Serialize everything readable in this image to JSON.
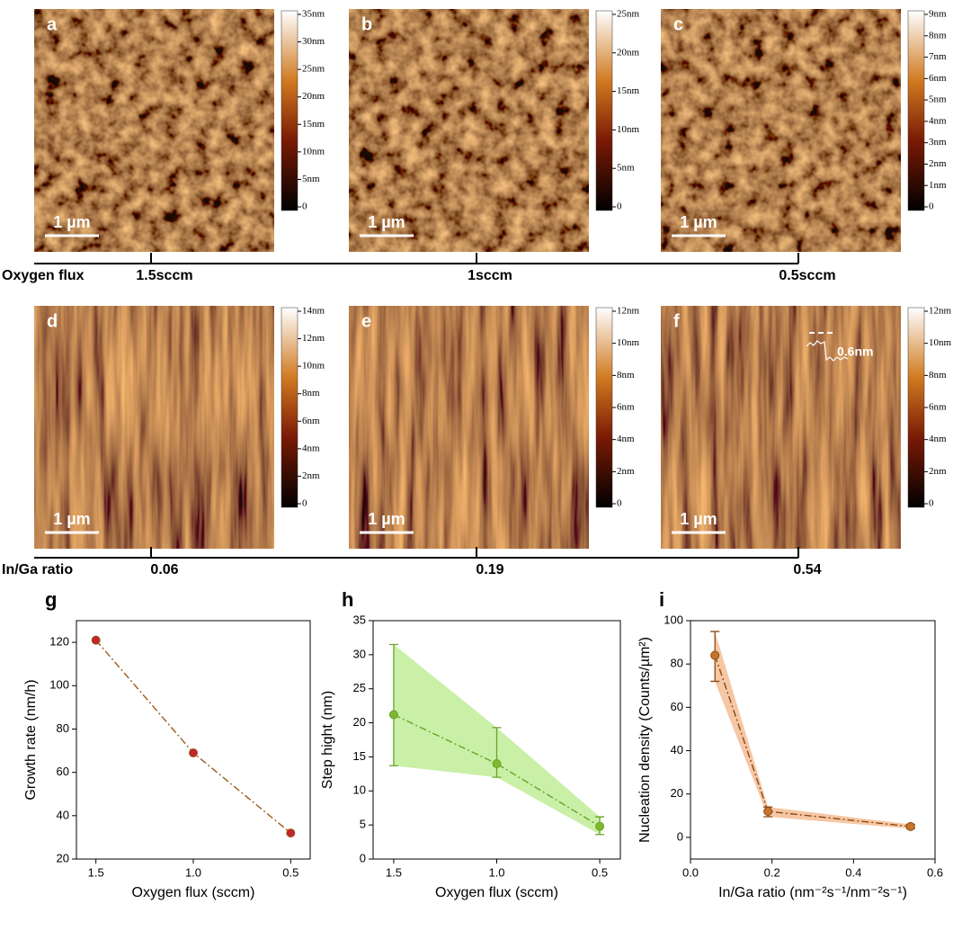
{
  "panels": [
    {
      "label": "a",
      "scale_bar": "1 µm",
      "colorbar": [
        "35nm",
        "30nm",
        "25nm",
        "20nm",
        "15nm",
        "10nm",
        "5nm",
        "0"
      ]
    },
    {
      "label": "b",
      "scale_bar": "1 µm",
      "colorbar": [
        "25nm",
        "20nm",
        "15nm",
        "10nm",
        "5nm",
        "0"
      ]
    },
    {
      "label": "c",
      "scale_bar": "1 µm",
      "colorbar": [
        "9nm",
        "8nm",
        "7nm",
        "6nm",
        "5nm",
        "4nm",
        "3nm",
        "2nm",
        "1nm",
        "0"
      ]
    },
    {
      "label": "d",
      "scale_bar": "1 µm",
      "colorbar": [
        "14nm",
        "12nm",
        "10nm",
        "8nm",
        "6nm",
        "4nm",
        "2nm",
        "0"
      ]
    },
    {
      "label": "e",
      "scale_bar": "1 µm",
      "colorbar": [
        "12nm",
        "10nm",
        "8nm",
        "6nm",
        "4nm",
        "2nm",
        "0"
      ]
    },
    {
      "label": "f",
      "scale_bar": "1 µm",
      "colorbar": [
        "12nm",
        "10nm",
        "8nm",
        "6nm",
        "4nm",
        "2nm",
        "0"
      ],
      "annotation": "0.6nm"
    }
  ],
  "axis_rows": [
    {
      "title": "Oxygen flux",
      "ticks": [
        "1.5sccm",
        "1sccm",
        "0.5sccm"
      ]
    },
    {
      "title": "In/Ga ratio",
      "ticks": [
        "0.06",
        "0.19",
        "0.54"
      ]
    }
  ],
  "chart_data": [
    {
      "type": "line",
      "panel": "g",
      "x": [
        1.5,
        1.0,
        0.5
      ],
      "values": [
        121,
        69,
        32
      ],
      "color": "#9b5a1a",
      "marker_color": "#c0262b",
      "line_style": "dashdot",
      "xlim": [
        1.6,
        0.4
      ],
      "xticks": [
        1.5,
        {
          "value": 1.0,
          "label": "1.0"
        },
        0.5
      ],
      "ylim": [
        20,
        130
      ],
      "yticks": [
        20,
        40,
        60,
        80,
        100,
        120
      ],
      "xlabel": "Oxygen flux (sccm)",
      "ylabel": "Growth rate (nm/h)"
    },
    {
      "type": "line",
      "panel": "h",
      "x": [
        1.5,
        1.0,
        0.5
      ],
      "values": [
        21.2,
        14,
        4.8
      ],
      "lower": [
        13.7,
        12,
        3.6
      ],
      "upper": [
        31.5,
        19.3,
        6.2
      ],
      "color": "#6aa22a",
      "marker_color": "#7fb82e",
      "band_color": "#c9f0a6",
      "line_style": "dashdot",
      "xlim": [
        1.6,
        0.4
      ],
      "xticks": [
        1.5,
        {
          "value": 1.0,
          "label": "1.0"
        },
        0.5
      ],
      "ylim": [
        0,
        35
      ],
      "yticks": [
        0,
        5,
        10,
        15,
        20,
        25,
        30,
        35
      ],
      "xlabel": "Oxygen flux (sccm)",
      "ylabel": "Step hight (nm)"
    },
    {
      "type": "line",
      "panel": "i",
      "x": [
        0.06,
        0.19,
        0.54
      ],
      "values": [
        84,
        12,
        5
      ],
      "lower": [
        72,
        9.5,
        4
      ],
      "upper": [
        95,
        14,
        6
      ],
      "color": "#8a4a16",
      "marker_color": "#c8742a",
      "band_color": "#f6c7a4",
      "line_style": "dashdot",
      "xlim": [
        0,
        0.6
      ],
      "xticks": [
        {
          "value": 0,
          "label": "0.0"
        },
        0.2,
        0.4,
        0.6
      ],
      "ylim": [
        -10,
        100
      ],
      "yticks": [
        0,
        20,
        40,
        60,
        80,
        100
      ],
      "xlabel": "In/Ga ratio (nm⁻²s⁻¹/nm⁻²s⁻¹)",
      "ylabel": "Nucleation density (Counts/µm²)"
    }
  ]
}
